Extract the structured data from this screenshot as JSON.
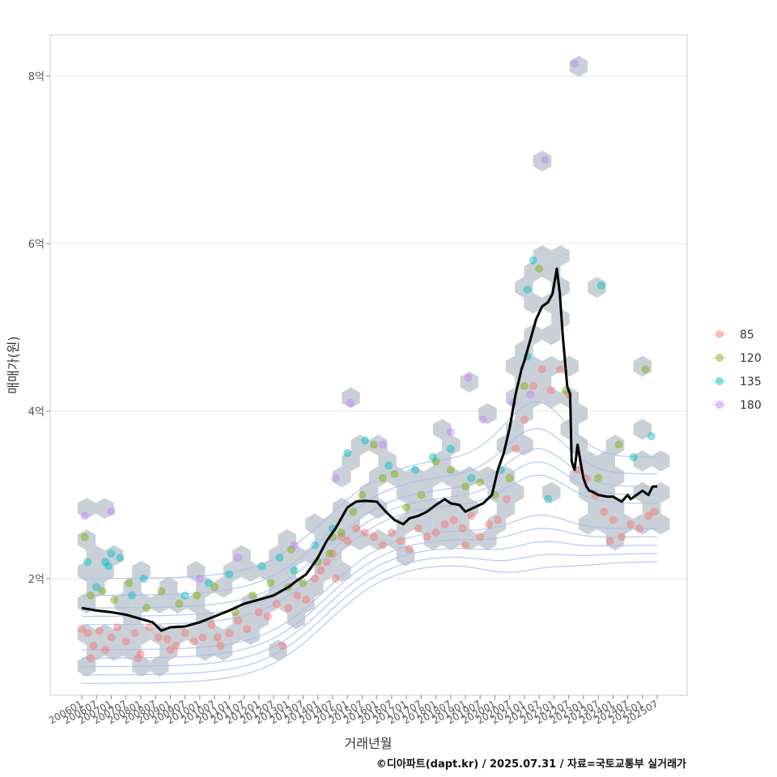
{
  "chart_data": {
    "type": "scatter",
    "xlabel": "거래년월",
    "ylabel": "매매가(원)",
    "ylim": [
      0.65,
      8.5
    ],
    "yticks": [
      {
        "value": 2,
        "label": "2억"
      },
      {
        "value": 4,
        "label": "4억"
      },
      {
        "value": 6,
        "label": "6억"
      },
      {
        "value": 8,
        "label": "8억"
      }
    ],
    "xticks": [
      "200601",
      "200607",
      "200701",
      "200707",
      "200801",
      "200807",
      "200901",
      "200907",
      "201001",
      "201007",
      "201101",
      "201107",
      "201201",
      "201207",
      "201301",
      "201307",
      "201401",
      "201407",
      "201501",
      "201507",
      "201601",
      "201607",
      "201701",
      "201707",
      "201801",
      "201807",
      "201901",
      "201907",
      "202001",
      "202007",
      "202101",
      "202107",
      "202201",
      "202207",
      "202301",
      "202307",
      "202401",
      "202407",
      "202501",
      "202507"
    ],
    "grid": true,
    "legend_position": "right",
    "legend": [
      {
        "label": "85",
        "color": "#F8766D"
      },
      {
        "label": "120",
        "color": "#7CAE00"
      },
      {
        "label": "135",
        "color": "#00BFC4"
      },
      {
        "label": "180",
        "color": "#C77CFF"
      }
    ],
    "colors": {
      "line": "#000000",
      "hex": "#c3cbd4",
      "contour": "#a8bdf0"
    },
    "trend_line": {
      "x": [
        2006.0,
        2006.5,
        2007.0,
        2007.5,
        2008.0,
        2008.4,
        2008.7,
        2009.0,
        2009.5,
        2010.0,
        2010.5,
        2011.0,
        2011.5,
        2012.0,
        2012.5,
        2013.0,
        2013.3,
        2013.6,
        2014.0,
        2014.3,
        2014.6,
        2015.0,
        2015.3,
        2015.6,
        2016.0,
        2016.3,
        2016.6,
        2016.9,
        2017.1,
        2017.4,
        2017.7,
        2018.0,
        2018.3,
        2018.5,
        2018.8,
        2019.0,
        2019.3,
        2019.6,
        2019.9,
        2020.1,
        2020.3,
        2020.5,
        2020.7,
        2020.9,
        2021.0,
        2021.2,
        2021.4,
        2021.6,
        2021.8,
        2021.95,
        2022.1,
        2022.2,
        2022.3,
        2022.45,
        2022.55,
        2022.6,
        2022.7,
        2022.8,
        2022.9,
        2023.0,
        2023.1,
        2023.2,
        2023.3,
        2023.5,
        2023.8,
        2024.0,
        2024.3,
        2024.5,
        2024.6,
        2024.8,
        2025.0,
        2025.2,
        2025.35,
        2025.5
      ],
      "y": [
        1.65,
        1.62,
        1.6,
        1.57,
        1.52,
        1.48,
        1.38,
        1.42,
        1.43,
        1.48,
        1.55,
        1.62,
        1.7,
        1.75,
        1.8,
        1.9,
        1.98,
        2.05,
        2.25,
        2.45,
        2.6,
        2.85,
        2.92,
        2.93,
        2.92,
        2.8,
        2.7,
        2.65,
        2.72,
        2.75,
        2.8,
        2.88,
        2.95,
        2.9,
        2.88,
        2.8,
        2.85,
        2.9,
        3.0,
        3.3,
        3.5,
        3.8,
        4.2,
        4.5,
        4.6,
        4.85,
        5.1,
        5.25,
        5.3,
        5.4,
        5.7,
        5.4,
        4.9,
        4.3,
        4.2,
        3.4,
        3.3,
        3.6,
        3.4,
        3.2,
        3.1,
        3.05,
        3.04,
        3.0,
        2.98,
        2.98,
        2.92,
        3.0,
        2.95,
        3.0,
        3.05,
        3.0,
        3.1,
        3.1
      ]
    },
    "series": [
      {
        "name": "85",
        "points": [
          [
            2006.0,
            1.4
          ],
          [
            2006.2,
            1.35
          ],
          [
            2006.4,
            1.2
          ],
          [
            2006.6,
            1.38
          ],
          [
            2006.8,
            1.15
          ],
          [
            2007.0,
            1.3
          ],
          [
            2007.2,
            1.42
          ],
          [
            2007.5,
            1.25
          ],
          [
            2007.8,
            1.35
          ],
          [
            2008.0,
            1.1
          ],
          [
            2008.3,
            1.42
          ],
          [
            2008.6,
            1.3
          ],
          [
            2008.9,
            1.28
          ],
          [
            2009.2,
            1.2
          ],
          [
            2009.5,
            1.35
          ],
          [
            2009.8,
            1.25
          ],
          [
            2010.1,
            1.3
          ],
          [
            2010.4,
            1.45
          ],
          [
            2010.7,
            1.2
          ],
          [
            2011.0,
            1.35
          ],
          [
            2011.3,
            1.5
          ],
          [
            2011.6,
            1.4
          ],
          [
            2012.0,
            1.6
          ],
          [
            2012.3,
            1.55
          ],
          [
            2012.6,
            1.7
          ],
          [
            2013.0,
            1.65
          ],
          [
            2013.3,
            1.8
          ],
          [
            2013.6,
            1.75
          ],
          [
            2013.9,
            2.0
          ],
          [
            2014.1,
            2.1
          ],
          [
            2014.3,
            2.2
          ],
          [
            2014.5,
            2.3
          ],
          [
            2014.8,
            2.5
          ],
          [
            2015.0,
            2.45
          ],
          [
            2015.3,
            2.6
          ],
          [
            2015.6,
            2.55
          ],
          [
            2015.9,
            2.5
          ],
          [
            2016.2,
            2.4
          ],
          [
            2016.5,
            2.55
          ],
          [
            2016.8,
            2.45
          ],
          [
            2017.1,
            2.35
          ],
          [
            2017.4,
            2.6
          ],
          [
            2017.7,
            2.5
          ],
          [
            2018.0,
            2.55
          ],
          [
            2018.3,
            2.65
          ],
          [
            2018.6,
            2.7
          ],
          [
            2018.9,
            2.6
          ],
          [
            2019.2,
            2.75
          ],
          [
            2019.5,
            2.5
          ],
          [
            2019.8,
            2.65
          ],
          [
            2020.1,
            2.7
          ],
          [
            2020.4,
            2.95
          ],
          [
            2020.7,
            3.55
          ],
          [
            2021.0,
            3.9
          ],
          [
            2021.3,
            4.3
          ],
          [
            2021.6,
            4.5
          ],
          [
            2021.9,
            4.25
          ],
          [
            2022.2,
            4.5
          ],
          [
            2022.5,
            4.2
          ],
          [
            2022.8,
            3.3
          ],
          [
            2023.1,
            3.2
          ],
          [
            2023.4,
            3.0
          ],
          [
            2023.7,
            2.8
          ],
          [
            2024.0,
            2.7
          ],
          [
            2024.3,
            2.5
          ],
          [
            2024.6,
            2.65
          ],
          [
            2024.9,
            2.6
          ],
          [
            2025.2,
            2.75
          ],
          [
            2025.4,
            2.8
          ],
          [
            2006.3,
            1.05
          ],
          [
            2007.9,
            1.05
          ],
          [
            2009.0,
            1.15
          ],
          [
            2010.6,
            1.3
          ],
          [
            2012.8,
            1.2
          ],
          [
            2014.6,
            2.0
          ],
          [
            2019.0,
            2.4
          ],
          [
            2023.9,
            2.45
          ]
        ]
      },
      {
        "name": "120",
        "points": [
          [
            2006.1,
            2.5
          ],
          [
            2006.3,
            1.8
          ],
          [
            2006.7,
            1.85
          ],
          [
            2007.1,
            1.75
          ],
          [
            2007.6,
            1.95
          ],
          [
            2008.2,
            1.65
          ],
          [
            2008.7,
            1.85
          ],
          [
            2009.3,
            1.7
          ],
          [
            2009.9,
            1.8
          ],
          [
            2010.5,
            1.9
          ],
          [
            2011.2,
            1.6
          ],
          [
            2011.8,
            1.8
          ],
          [
            2012.4,
            1.95
          ],
          [
            2013.0,
            1.9
          ],
          [
            2013.5,
            1.95
          ],
          [
            2014.0,
            2.2
          ],
          [
            2014.4,
            2.3
          ],
          [
            2014.8,
            2.55
          ],
          [
            2015.2,
            2.8
          ],
          [
            2015.5,
            3.0
          ],
          [
            2015.9,
            3.6
          ],
          [
            2016.2,
            3.2
          ],
          [
            2016.6,
            3.25
          ],
          [
            2017.0,
            2.85
          ],
          [
            2017.5,
            3.0
          ],
          [
            2018.0,
            3.4
          ],
          [
            2018.5,
            3.3
          ],
          [
            2019.0,
            3.1
          ],
          [
            2019.5,
            3.15
          ],
          [
            2020.0,
            3.0
          ],
          [
            2020.5,
            3.2
          ],
          [
            2021.0,
            4.3
          ],
          [
            2021.5,
            5.7
          ],
          [
            2022.4,
            4.25
          ],
          [
            2023.5,
            3.2
          ],
          [
            2024.2,
            3.6
          ],
          [
            2025.1,
            4.5
          ],
          [
            2013.1,
            2.35
          ],
          [
            2014.5,
            2.5
          ]
        ]
      },
      {
        "name": "135",
        "points": [
          [
            2006.2,
            2.2
          ],
          [
            2006.5,
            1.9
          ],
          [
            2006.8,
            2.2
          ],
          [
            2007.0,
            2.3
          ],
          [
            2007.3,
            2.25
          ],
          [
            2007.7,
            1.8
          ],
          [
            2008.1,
            2.0
          ],
          [
            2009.5,
            1.8
          ],
          [
            2010.3,
            1.95
          ],
          [
            2011.0,
            2.05
          ],
          [
            2012.1,
            2.15
          ],
          [
            2012.7,
            2.25
          ],
          [
            2013.2,
            2.1
          ],
          [
            2013.9,
            2.4
          ],
          [
            2014.5,
            2.6
          ],
          [
            2015.0,
            3.5
          ],
          [
            2015.6,
            3.65
          ],
          [
            2016.4,
            3.35
          ],
          [
            2017.3,
            3.3
          ],
          [
            2017.9,
            3.45
          ],
          [
            2018.5,
            3.55
          ],
          [
            2019.2,
            3.2
          ],
          [
            2020.2,
            3.3
          ],
          [
            2021.1,
            4.65
          ],
          [
            2021.3,
            5.8
          ],
          [
            2021.1,
            5.45
          ],
          [
            2021.8,
            2.95
          ],
          [
            2023.6,
            5.5
          ],
          [
            2024.7,
            3.45
          ],
          [
            2025.3,
            3.7
          ],
          [
            2006.9,
            2.15
          ]
        ]
      },
      {
        "name": "180",
        "points": [
          [
            2006.1,
            2.75
          ],
          [
            2007.0,
            2.8
          ],
          [
            2015.1,
            4.1
          ],
          [
            2016.2,
            3.6
          ],
          [
            2018.5,
            3.75
          ],
          [
            2019.1,
            4.4
          ],
          [
            2019.6,
            3.9
          ],
          [
            2020.6,
            4.1
          ],
          [
            2021.2,
            4.2
          ],
          [
            2021.7,
            7.0
          ],
          [
            2022.7,
            8.15
          ],
          [
            2013.2,
            2.4
          ],
          [
            2014.6,
            3.2
          ],
          [
            2011.3,
            2.25
          ],
          [
            2010.0,
            2.0
          ]
        ]
      }
    ]
  },
  "caption": "©디아파트(dapt.kr) / 2025.07.31 / 자료=국토교통부 실거래가"
}
